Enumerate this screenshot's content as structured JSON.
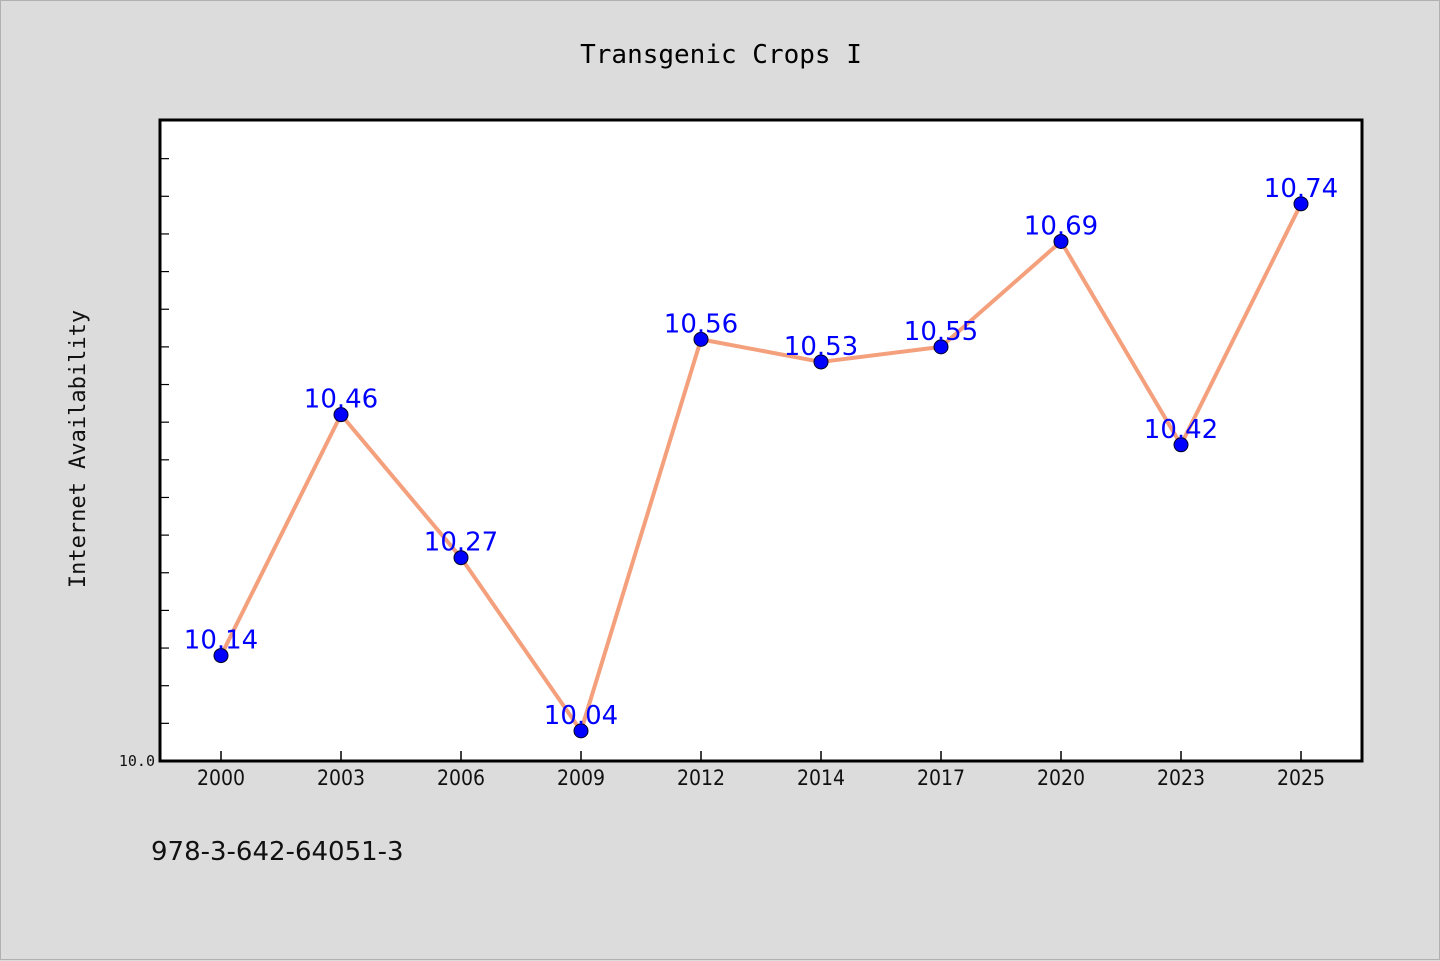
{
  "footer": {
    "isbn": "978-3-642-64051-3"
  },
  "colors": {
    "line": "#f4a07c",
    "marker": "#0000ff",
    "label": "#0000ff",
    "plot_bg": "#ffffff",
    "page_bg": "#dcdcdc"
  },
  "chart_data": {
    "type": "line",
    "title": "Transgenic Crops I",
    "xlabel": "",
    "ylabel": "Internet Availability",
    "categories": [
      "2000",
      "2003",
      "2006",
      "2009",
      "2012",
      "2014",
      "2017",
      "2020",
      "2023",
      "2025"
    ],
    "series": [
      {
        "values": [
          10.14,
          10.46,
          10.27,
          10.04,
          10.56,
          10.53,
          10.55,
          10.69,
          10.42,
          10.74
        ]
      }
    ],
    "yticks": [
      10.0
    ],
    "ytick_labels": [
      "10.0"
    ],
    "ylim": [
      10.0,
      10.85
    ],
    "minor_tick_step": 0.05,
    "grid": false,
    "legend": false
  }
}
